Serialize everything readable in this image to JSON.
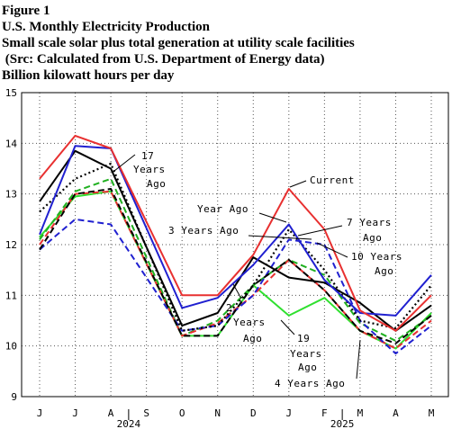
{
  "figure": {
    "label": "Figure 1",
    "title": "U.S. Monthly Electricity Production",
    "subtitle": "Small scale solar plus total generation at utility scale facilities",
    "source": " (Src: Calculated from U.S. Department of Energy data)",
    "units": "Billion kilowatt hours per day"
  },
  "chart_data": {
    "type": "line",
    "ylabel": "Billion kilowatt hours per day",
    "ylim": [
      9,
      15
    ],
    "yticks": [
      9,
      10,
      11,
      12,
      13,
      14,
      15
    ],
    "grid": true,
    "categories": [
      "J",
      "J",
      "A",
      "S",
      "O",
      "N",
      "D",
      "J",
      "F",
      "M",
      "A",
      "M"
    ],
    "year_labels": [
      {
        "label": "2024",
        "after_index": 2
      },
      {
        "label": "2025",
        "after_index": 8
      }
    ],
    "series": [
      {
        "name": "Current",
        "color": "#e83030",
        "dash": "solid",
        "values": [
          13.3,
          14.15,
          13.9,
          null,
          11.0,
          11.0,
          11.8,
          13.1,
          12.3,
          10.7,
          10.3,
          11.0
        ]
      },
      {
        "name": "Year Ago",
        "color": "#2020d0",
        "dash": "solid",
        "values": [
          12.2,
          13.95,
          13.9,
          null,
          10.75,
          10.95,
          11.6,
          12.4,
          11.3,
          10.65,
          10.6,
          11.4
        ]
      },
      {
        "name": "2 Years Ago",
        "color": "#000000",
        "dash": "solid",
        "values": [
          12.85,
          13.85,
          13.5,
          null,
          10.4,
          10.65,
          11.75,
          11.35,
          11.25,
          10.85,
          10.3,
          10.8
        ]
      },
      {
        "name": "3 Years Ago",
        "color": "#000000",
        "dash": "dotted",
        "values": [
          12.65,
          13.3,
          13.6,
          null,
          10.3,
          10.4,
          11.2,
          12.3,
          11.5,
          10.5,
          10.35,
          11.2
        ]
      },
      {
        "name": "4 Years Ago",
        "color": "#000000",
        "dash": "dashed",
        "values": [
          11.9,
          13.0,
          13.1,
          null,
          10.2,
          10.2,
          11.2,
          11.7,
          11.1,
          10.3,
          10.05,
          10.6
        ]
      },
      {
        "name": "7 Years Ago",
        "color": "#2020d0",
        "dash": "dashed",
        "values": [
          11.9,
          12.5,
          12.4,
          null,
          10.3,
          10.4,
          11.0,
          12.1,
          12.0,
          10.5,
          9.85,
          10.4
        ]
      },
      {
        "name": "10 Years Ago",
        "color": "#e83030",
        "dash": "dashed",
        "values": [
          12.0,
          13.0,
          13.05,
          null,
          10.2,
          10.45,
          11.0,
          11.7,
          11.1,
          10.3,
          9.95,
          10.5
        ]
      },
      {
        "name": "17 Years Ago",
        "color": "#20b020",
        "dash": "dashed",
        "values": [
          12.1,
          13.05,
          13.3,
          null,
          10.2,
          10.5,
          11.2,
          11.7,
          11.4,
          10.45,
          10.1,
          10.6
        ]
      },
      {
        "name": "19 Years Ago",
        "color": "#30e030",
        "dash": "solid",
        "values": [
          12.15,
          12.95,
          13.05,
          null,
          10.2,
          10.2,
          11.2,
          10.6,
          10.95,
          10.3,
          9.95,
          10.65
        ]
      }
    ],
    "annotations": [
      {
        "text": "17",
        "target": "17 Years Ago"
      },
      {
        "text": "Years",
        "target": "17 Years Ago"
      },
      {
        "text": "Ago",
        "target": "17 Years Ago"
      },
      {
        "text": "Current",
        "target": "Current"
      },
      {
        "text": "Year Ago",
        "target": "Year Ago"
      },
      {
        "text": "3 Years Ago",
        "target": "3 Years Ago"
      },
      {
        "text": "7 Years",
        "target": "7 Years Ago"
      },
      {
        "text": "Ago",
        "target": "7 Years Ago"
      },
      {
        "text": "10 Years",
        "target": "10 Years Ago"
      },
      {
        "text": "Ago",
        "target": "10 Years Ago"
      },
      {
        "text": "2",
        "target": "2 Years Ago"
      },
      {
        "text": "Years",
        "target": "2 Years Ago"
      },
      {
        "text": "Ago",
        "target": "2 Years Ago"
      },
      {
        "text": "19",
        "target": "19 Years Ago"
      },
      {
        "text": "Years",
        "target": "19 Years Ago"
      },
      {
        "text": "Ago",
        "target": "19 Years Ago"
      },
      {
        "text": "4 Years Ago",
        "target": "4 Years Ago"
      }
    ]
  }
}
